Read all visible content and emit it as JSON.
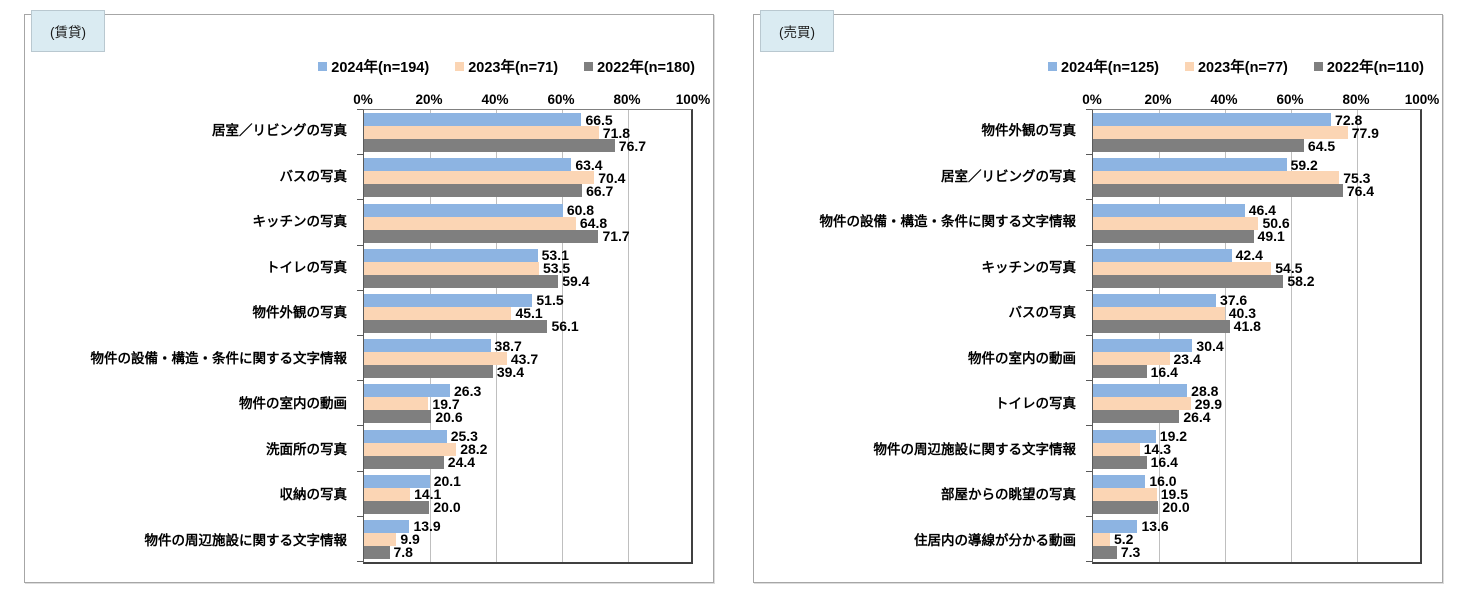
{
  "page": {
    "background": "#FFFFFF"
  },
  "chart_data": [
    {
      "type": "bar",
      "orientation": "horizontal",
      "panel_tag": "(賃貸)",
      "legend": [
        "2024年(n=194)",
        "2023年(n=71)",
        "2022年(n=180)"
      ],
      "legend_position": "top-right",
      "x_ticks": [
        "0%",
        "20%",
        "40%",
        "60%",
        "80%",
        "100%"
      ],
      "xlim": [
        0,
        100
      ],
      "grid": true,
      "value_label_format": "one-decimal",
      "categories": [
        "居室／リビングの写真",
        "バスの写真",
        "キッチンの写真",
        "トイレの写真",
        "物件外観の写真",
        "物件の設備・構造・条件に関する文字情報",
        "物件の室内の動画",
        "洗面所の写真",
        "収納の写真",
        "物件の周辺施設に関する文字情報"
      ],
      "series": [
        {
          "name": "2024年(n=194)",
          "color": "#8DB4E2",
          "values": [
            66.5,
            63.4,
            60.8,
            53.1,
            51.5,
            38.7,
            26.3,
            25.3,
            20.1,
            13.9
          ]
        },
        {
          "name": "2023年(n=71)",
          "color": "#FBD5B4",
          "values": [
            71.8,
            70.4,
            64.8,
            53.5,
            45.1,
            43.7,
            19.7,
            28.2,
            14.1,
            9.9
          ]
        },
        {
          "name": "2022年(n=180)",
          "color": "#7F7F7F",
          "values": [
            76.7,
            66.7,
            71.7,
            59.4,
            56.1,
            39.4,
            20.6,
            24.4,
            20.0,
            7.8
          ]
        }
      ]
    },
    {
      "type": "bar",
      "orientation": "horizontal",
      "panel_tag": "(売買)",
      "legend": [
        "2024年(n=125)",
        "2023年(n=77)",
        "2022年(n=110)"
      ],
      "legend_position": "top-right",
      "x_ticks": [
        "0%",
        "20%",
        "40%",
        "60%",
        "80%",
        "100%"
      ],
      "xlim": [
        0,
        100
      ],
      "grid": true,
      "value_label_format": "one-decimal",
      "categories": [
        "物件外観の写真",
        "居室／リビングの写真",
        "物件の設備・構造・条件に関する文字情報",
        "キッチンの写真",
        "バスの写真",
        "物件の室内の動画",
        "トイレの写真",
        "物件の周辺施設に関する文字情報",
        "部屋からの眺望の写真",
        "住居内の導線が分かる動画"
      ],
      "series": [
        {
          "name": "2024年(n=125)",
          "color": "#8DB4E2",
          "values": [
            72.8,
            59.2,
            46.4,
            42.4,
            37.6,
            30.4,
            28.8,
            19.2,
            16.0,
            13.6
          ]
        },
        {
          "name": "2023年(n=77)",
          "color": "#FBD5B4",
          "values": [
            77.9,
            75.3,
            50.6,
            54.5,
            40.3,
            23.4,
            29.9,
            14.3,
            19.5,
            5.2
          ]
        },
        {
          "name": "2022年(n=110)",
          "color": "#7F7F7F",
          "values": [
            64.5,
            76.4,
            49.1,
            58.2,
            41.8,
            16.4,
            26.4,
            16.4,
            20.0,
            7.3
          ]
        }
      ]
    }
  ],
  "colors": {
    "bar_2024": "#8DB4E2",
    "bar_2023": "#FBD5B4",
    "bar_2022": "#7F7F7F",
    "tag_box_fill": "#DAEBF2",
    "gridline": "#BFBFBF",
    "panel_border": "#A6A6A6"
  }
}
